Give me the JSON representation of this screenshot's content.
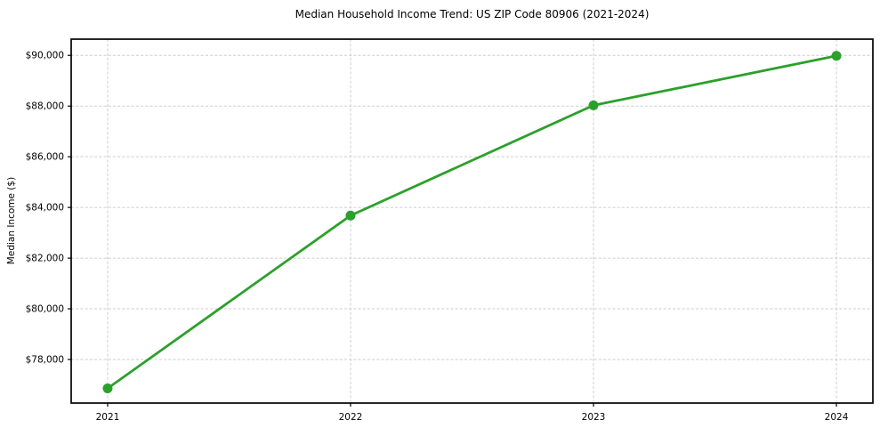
{
  "chart_data": {
    "type": "line",
    "title": "Median Household Income Trend: US ZIP Code 80906 (2021-2024)",
    "xlabel": "",
    "ylabel": "Median Income ($)",
    "x": [
      2021,
      2022,
      2023,
      2024
    ],
    "series": [
      {
        "name": "Median Household Income",
        "values": [
          76860,
          83680,
          88030,
          89980
        ]
      }
    ],
    "x_tick_labels": [
      "2021",
      "2022",
      "2023",
      "2024"
    ],
    "y_ticks": [
      78000,
      80000,
      82000,
      84000,
      86000,
      88000,
      90000
    ],
    "y_tick_labels": [
      "$78,000",
      "$80,000",
      "$82,000",
      "$84,000",
      "$86,000",
      "$88,000",
      "$90,000"
    ],
    "xlim": [
      2020.85,
      2024.15
    ],
    "ylim": [
      76280,
      90640
    ],
    "grid": true,
    "legend": "none",
    "line_color": "#2ca02c",
    "grid_color": "#cfcfcf",
    "axis_color": "#000000",
    "background_color": "#ffffff"
  }
}
